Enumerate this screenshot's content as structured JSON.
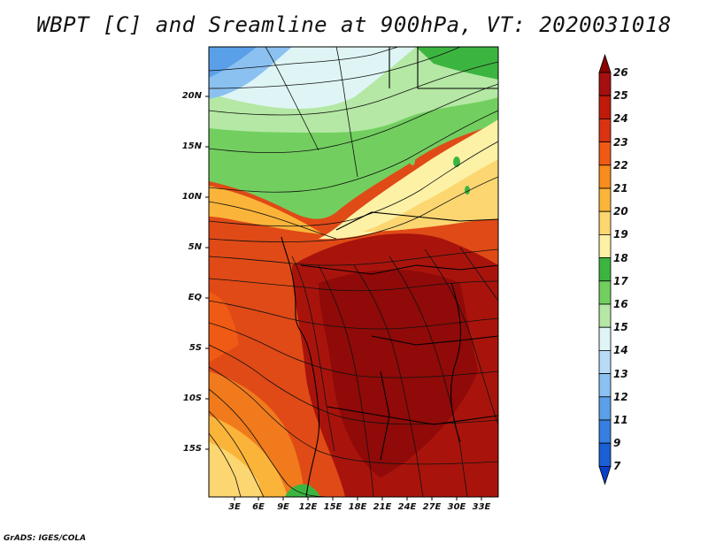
{
  "title": "WBPT [C] and Sreamline at 900hPa, VT: 2020031018",
  "credit": "GrADS: IGES/COLA",
  "map": {
    "lat_labels": [
      "20N",
      "15N",
      "10N",
      "5N",
      "EQ",
      "5S",
      "10S",
      "15S"
    ],
    "lon_labels": [
      "3E",
      "6E",
      "9E",
      "12E",
      "15E",
      "18E",
      "21E",
      "24E",
      "27E",
      "30E",
      "33E"
    ]
  },
  "colorbar": {
    "labels": [
      "26",
      "25",
      "24",
      "23",
      "22",
      "21",
      "20",
      "19",
      "18",
      "17",
      "16",
      "15",
      "14",
      "13",
      "12",
      "11",
      "9",
      "7"
    ],
    "colors": [
      "#8b0000",
      "#a50f0f",
      "#c01a0a",
      "#d93312",
      "#ef5a14",
      "#f88c1c",
      "#fbb43a",
      "#fcd671",
      "#fdf1a6",
      "#3cb540",
      "#72cf5f",
      "#b4e8a4",
      "#dff5f5",
      "#b7dbf7",
      "#8ac1f1",
      "#5aa0e8",
      "#377fe0",
      "#1a5fd6",
      "#0a3fc9"
    ]
  }
}
